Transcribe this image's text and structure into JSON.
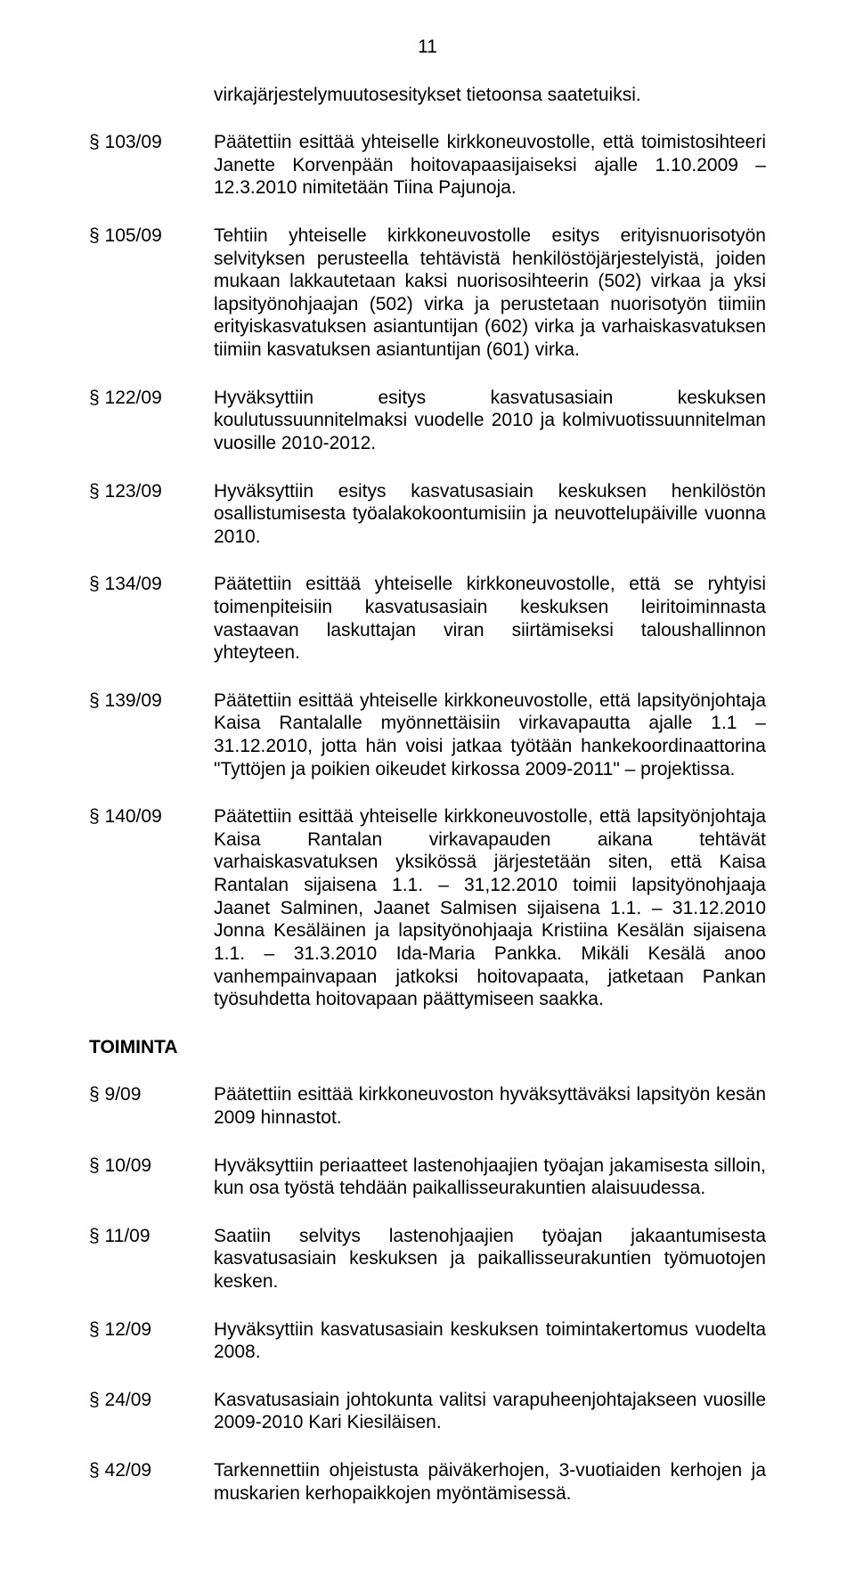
{
  "page_number": "11",
  "intro_line": "virkajärjestelymuutosesitykset tietoonsa saatetuiksi.",
  "sections": [
    {
      "entries": [
        {
          "key": "§ 103/09",
          "text": "Päätettiin esittää yhteiselle kirkkoneuvostolle, että toimistosihteeri Janette Korvenpään hoitovapaasijaiseksi ajalle 1.10.2009 – 12.3.2010 nimitetään Tiina Pajunoja."
        },
        {
          "key": "§ 105/09",
          "text": "Tehtiin yhteiselle kirkkoneuvostolle esitys erityisnuorisotyön selvityksen perusteella tehtävistä henkilöstöjärjestelyistä, joiden mukaan lakkautetaan kaksi nuorisosihteerin (502) virkaa ja yksi lapsityönohjaajan (502) virka ja perustetaan nuorisotyön tiimiin erityiskasvatuksen asiantuntijan (602) virka ja varhaiskasvatuksen tiimiin kasvatuksen asiantuntijan (601) virka."
        },
        {
          "key": "§ 122/09",
          "text": "Hyväksyttiin esitys kasvatusasiain keskuksen koulutussuunnitelmaksi vuodelle 2010 ja kolmivuotissuunnitelman vuosille 2010-2012."
        },
        {
          "key": "§ 123/09",
          "text": "Hyväksyttiin esitys kasvatusasiain keskuksen henkilöstön osallistumisesta työalakokoontumisiin ja neuvottelupäiville vuonna 2010."
        },
        {
          "key": "§ 134/09",
          "text": "Päätettiin esittää yhteiselle kirkkoneuvostolle, että se ryhtyisi toimenpiteisiin kasvatusasiain keskuksen leiritoiminnasta vastaavan laskuttajan viran siirtämiseksi taloushallinnon yhteyteen."
        },
        {
          "key": "§ 139/09",
          "text": "Päätettiin esittää yhteiselle kirkkoneuvostolle, että lapsityönjohtaja Kaisa Rantalalle myönnettäisiin virkavapautta ajalle 1.1 – 31.12.2010, jotta hän voisi jatkaa työtään hankekoordinaattorina \"Tyttöjen ja poikien oikeudet kirkossa 2009-2011\" – projektissa."
        },
        {
          "key": "§ 140/09",
          "text": "Päätettiin esittää yhteiselle kirkkoneuvostolle, että lapsityönjohtaja Kaisa Rantalan virkavapauden aikana tehtävät varhaiskasvatuksen yksikössä järjestetään siten, että Kaisa Rantalan sijaisena 1.1. – 31,12.2010 toimii lapsityönohjaaja Jaanet Salminen, Jaanet Salmisen sijaisena 1.1. – 31.12.2010 Jonna Kesäläinen ja lapsityönohjaaja Kristiina Kesälän sijaisena 1.1. – 31.3.2010 Ida-Maria Pankka. Mikäli Kesälä anoo vanhempainvapaan jatkoksi hoitovapaata, jatketaan Pankan työsuhdetta hoitovapaan päättymiseen saakka."
        }
      ]
    },
    {
      "heading": "TOIMINTA",
      "entries": [
        {
          "key": "§ 9/09",
          "text": "Päätettiin esittää kirkkoneuvoston hyväksyttäväksi lapsityön kesän 2009 hinnastot."
        },
        {
          "key": "§ 10/09",
          "text": "Hyväksyttiin periaatteet lastenohjaajien työajan jakamisesta silloin, kun osa työstä tehdään paikallisseurakuntien alaisuudessa."
        },
        {
          "key": "§ 11/09",
          "text": "Saatiin selvitys lastenohjaajien työajan jakaantumisesta kasvatusasiain keskuksen ja paikallisseurakuntien työmuotojen kesken."
        },
        {
          "key": "§ 12/09",
          "text": "Hyväksyttiin kasvatusasiain keskuksen toimintakertomus vuodelta 2008."
        },
        {
          "key": "§ 24/09",
          "text": "Kasvatusasiain johtokunta valitsi varapuheenjohtajakseen vuosille 2009-2010 Kari Kiesiläisen."
        },
        {
          "key": "§ 42/09",
          "text": "Tarkennettiin ohjeistusta päiväkerhojen, 3-vuotiaiden kerhojen ja muskarien kerhopaikkojen myöntämisessä."
        }
      ]
    }
  ]
}
